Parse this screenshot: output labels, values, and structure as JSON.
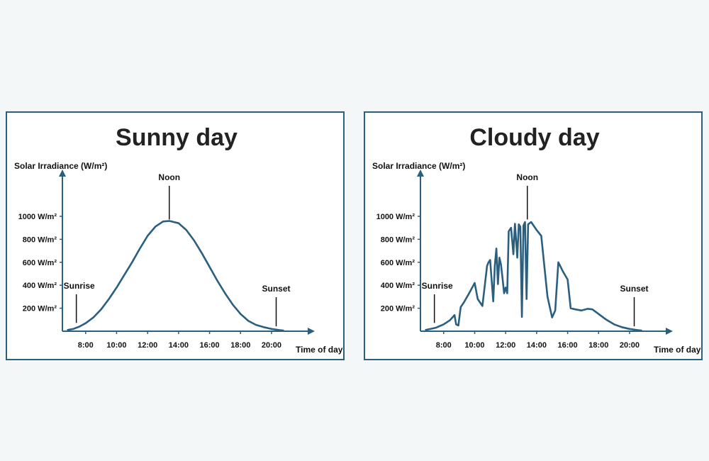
{
  "chart_data": [
    {
      "type": "line",
      "title": "Sunny day",
      "ylabel": "Solar Irradiance (W/m²)",
      "xlabel": "Time of day",
      "x_ticks": [
        "8:00",
        "10:00",
        "12:00",
        "14:00",
        "16:00",
        "18:00",
        "20:00"
      ],
      "y_ticks": [
        "200 W/m²",
        "400 W/m²",
        "600 W/m²",
        "800 W/m²",
        "1000 W/m²"
      ],
      "y_tick_values": [
        200,
        400,
        600,
        800,
        1000
      ],
      "xlim": [
        6.5,
        22
      ],
      "ylim": [
        0,
        1200
      ],
      "grid": false,
      "annotations": [
        {
          "text": "Sunrise",
          "x": 7.4,
          "y": 60
        },
        {
          "text": "Noon",
          "x": 13.4,
          "y": 960
        },
        {
          "text": "Sunset",
          "x": 20.3,
          "y": 30
        }
      ],
      "series": [
        {
          "x": [
            6.8,
            7.2,
            7.6,
            8,
            8.5,
            9,
            9.5,
            10,
            10.5,
            11,
            11.5,
            12,
            12.5,
            13,
            13.4,
            14,
            14.5,
            15,
            15.5,
            16,
            16.5,
            17,
            17.5,
            18,
            18.5,
            19,
            19.5,
            20,
            20.5,
            20.8
          ],
          "y": [
            10,
            20,
            40,
            70,
            120,
            190,
            280,
            380,
            490,
            600,
            720,
            830,
            910,
            955,
            960,
            940,
            880,
            790,
            680,
            560,
            440,
            330,
            230,
            150,
            90,
            55,
            35,
            20,
            10,
            5
          ]
        }
      ]
    },
    {
      "type": "line",
      "title": "Cloudy day",
      "ylabel": "Solar Irradiance (W/m²)",
      "xlabel": "Time of day",
      "x_ticks": [
        "8:00",
        "10:00",
        "12:00",
        "14:00",
        "16:00",
        "18:00",
        "20:00"
      ],
      "y_ticks": [
        "200 W/m²",
        "400 W/m²",
        "600 W/m²",
        "800 W/m²",
        "1000 W/m²"
      ],
      "y_tick_values": [
        200,
        400,
        600,
        800,
        1000
      ],
      "xlim": [
        6.5,
        22
      ],
      "ylim": [
        0,
        1200
      ],
      "grid": false,
      "annotations": [
        {
          "text": "Sunrise",
          "x": 7.4,
          "y": 60
        },
        {
          "text": "Noon",
          "x": 13.4,
          "y": 960
        },
        {
          "text": "Sunset",
          "x": 20.3,
          "y": 30
        }
      ],
      "series": [
        {
          "x": [
            6.8,
            7.5,
            8,
            8.4,
            8.7,
            8.8,
            8.95,
            9.1,
            9.3,
            9.6,
            10,
            10.2,
            10.5,
            10.8,
            10.9,
            11.0,
            11.2,
            11.3,
            11.4,
            11.5,
            11.6,
            11.7,
            11.8,
            11.9,
            12.0,
            12.1,
            12.2,
            12.35,
            12.5,
            12.6,
            12.75,
            12.85,
            12.95,
            13.05,
            13.15,
            13.25,
            13.35,
            13.45,
            13.55,
            13.65,
            13.8,
            14.0,
            14.3,
            14.7,
            15.0,
            15.2,
            15.4,
            15.7,
            16.0,
            16.2,
            16.5,
            16.9,
            17.3,
            17.6,
            17.9,
            18.5,
            19,
            19.5,
            20,
            20.5,
            20.8
          ],
          "y": [
            10,
            30,
            60,
            95,
            140,
            60,
            50,
            210,
            250,
            320,
            420,
            280,
            220,
            570,
            600,
            620,
            260,
            570,
            720,
            410,
            640,
            580,
            460,
            330,
            380,
            330,
            870,
            900,
            670,
            935,
            640,
            930,
            910,
            125,
            920,
            950,
            280,
            930,
            940,
            950,
            920,
            880,
            830,
            300,
            120,
            180,
            600,
            520,
            450,
            200,
            190,
            180,
            195,
            190,
            160,
            100,
            60,
            35,
            20,
            10,
            5
          ]
        }
      ]
    }
  ]
}
